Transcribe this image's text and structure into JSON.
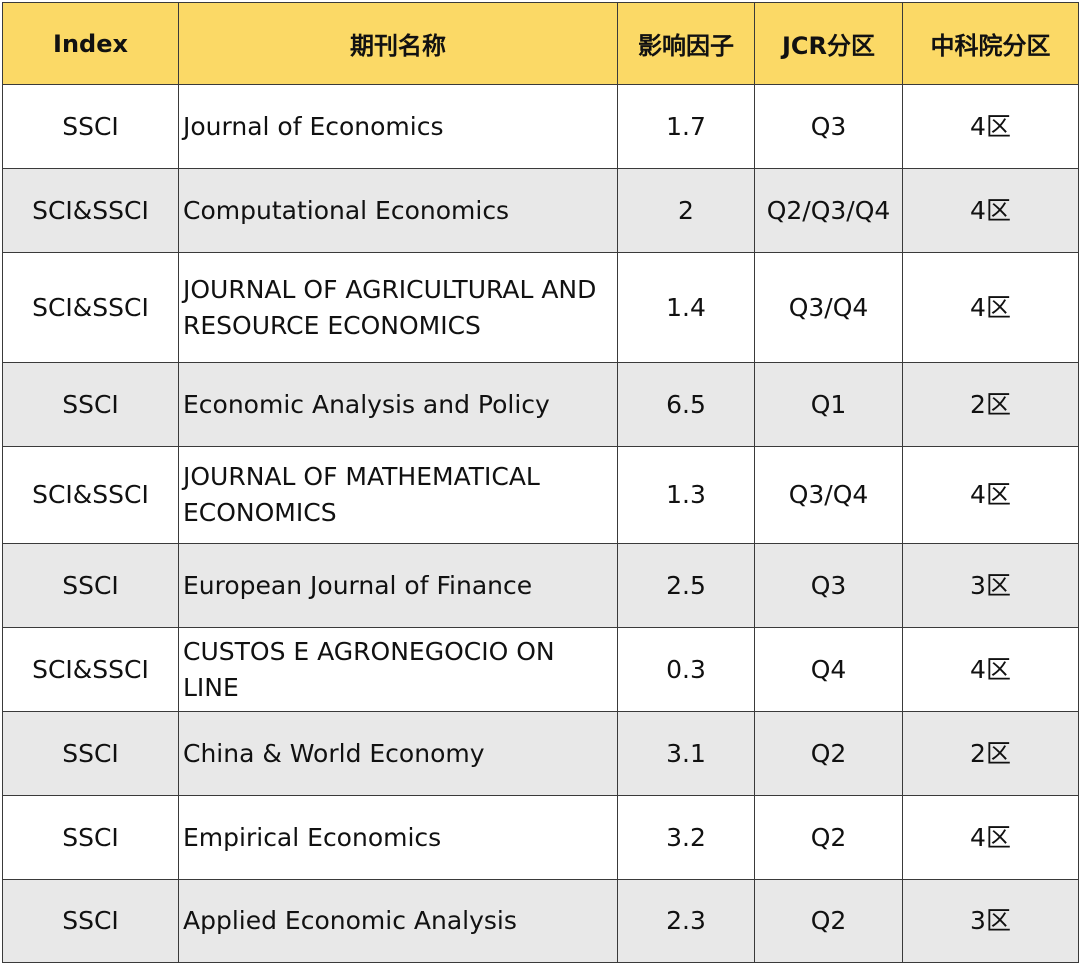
{
  "table": {
    "headers": {
      "index": "Index",
      "journal_name": "期刊名称",
      "impact_factor": "影响因子",
      "jcr_zone": "JCR分区",
      "cas_zone": "中科院分区"
    },
    "rows": [
      {
        "index": "SSCI",
        "name": "Journal of Economics",
        "impact_factor": "1.7",
        "jcr": "Q3",
        "cas": "4区"
      },
      {
        "index": "SCI&SSCI",
        "name": "Computational Economics",
        "impact_factor": "2",
        "jcr": "Q2/Q3/Q4",
        "cas": "4区"
      },
      {
        "index": "SCI&SSCI",
        "name": "JOURNAL OF AGRICULTURAL AND RESOURCE ECONOMICS",
        "impact_factor": "1.4",
        "jcr": "Q3/Q4",
        "cas": "4区"
      },
      {
        "index": "SSCI",
        "name": "Economic Analysis and Policy",
        "impact_factor": "6.5",
        "jcr": "Q1",
        "cas": "2区"
      },
      {
        "index": "SCI&SSCI",
        "name": "JOURNAL OF MATHEMATICAL ECONOMICS",
        "impact_factor": "1.3",
        "jcr": "Q3/Q4",
        "cas": "4区"
      },
      {
        "index": "SSCI",
        "name": "European Journal of Finance",
        "impact_factor": "2.5",
        "jcr": "Q3",
        "cas": "3区"
      },
      {
        "index": "SCI&SSCI",
        "name": "CUSTOS E AGRONEGOCIO ON LINE",
        "impact_factor": "0.3",
        "jcr": "Q4",
        "cas": "4区"
      },
      {
        "index": "SSCI",
        "name": "China & World Economy",
        "impact_factor": "3.1",
        "jcr": "Q2",
        "cas": "2区"
      },
      {
        "index": "SSCI",
        "name": "Empirical Economics",
        "impact_factor": "3.2",
        "jcr": "Q2",
        "cas": "4区"
      },
      {
        "index": "SSCI",
        "name": "Applied Economic Analysis",
        "impact_factor": "2.3",
        "jcr": "Q2",
        "cas": "3区"
      }
    ]
  },
  "colors": {
    "header_background": "#fbd966",
    "row_stripe": "#e8e8e8",
    "row_plain": "#ffffff",
    "border": "#3a3a3a"
  }
}
